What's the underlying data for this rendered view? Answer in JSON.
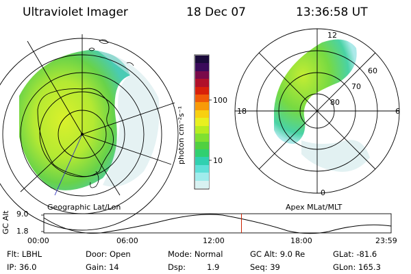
{
  "header": {
    "title": "Ultraviolet Imager",
    "date": "18 Dec 07",
    "time": "13:36:58 UT"
  },
  "left_panel": {
    "caption": "Geographic Lat/Lon"
  },
  "right_panel": {
    "caption": "Apex MLat/MLT",
    "mlt_labels": {
      "top": "12",
      "left": "18",
      "right": "6",
      "bottom": "0"
    },
    "lat_labels": [
      "60",
      "70",
      "80"
    ]
  },
  "colorbar": {
    "unit_label": "photon cm⁻²s⁻¹",
    "ticks": [
      "100",
      "10"
    ],
    "colors_top_to_bottom": [
      "#1a0a3a",
      "#3a0a5a",
      "#7a0a4a",
      "#b0102a",
      "#d8200a",
      "#f05a08",
      "#f89a08",
      "#f8d010",
      "#e8f020",
      "#b8ec20",
      "#80e030",
      "#50d040",
      "#30d070",
      "#30d0b0",
      "#60e0d8",
      "#a0ecec",
      "#d8f2f2"
    ]
  },
  "timeline": {
    "y_label": "GC Alt",
    "y_ticks": [
      "9.0",
      "1.8"
    ],
    "x_ticks": [
      "00:00",
      "06:00",
      "12:00",
      "18:00",
      "23:59"
    ],
    "marker_time": "13:36:58",
    "marker_color": "#cc2200"
  },
  "info": {
    "flt_label": "Flt: LBHL",
    "ip_label": "IP: 36.0",
    "door_label": "Door: Open",
    "gain_label": "Gain: 14",
    "mode_label": "Mode: Normal",
    "dsp_label": "Dsp:",
    "dsp_value": "1.9",
    "gcalt_label": "GC Alt: 9.0 Re",
    "seq_label": "Seq: 39",
    "glat_label": "GLat: -81.6",
    "glon_label": "GLon: 165.3"
  }
}
